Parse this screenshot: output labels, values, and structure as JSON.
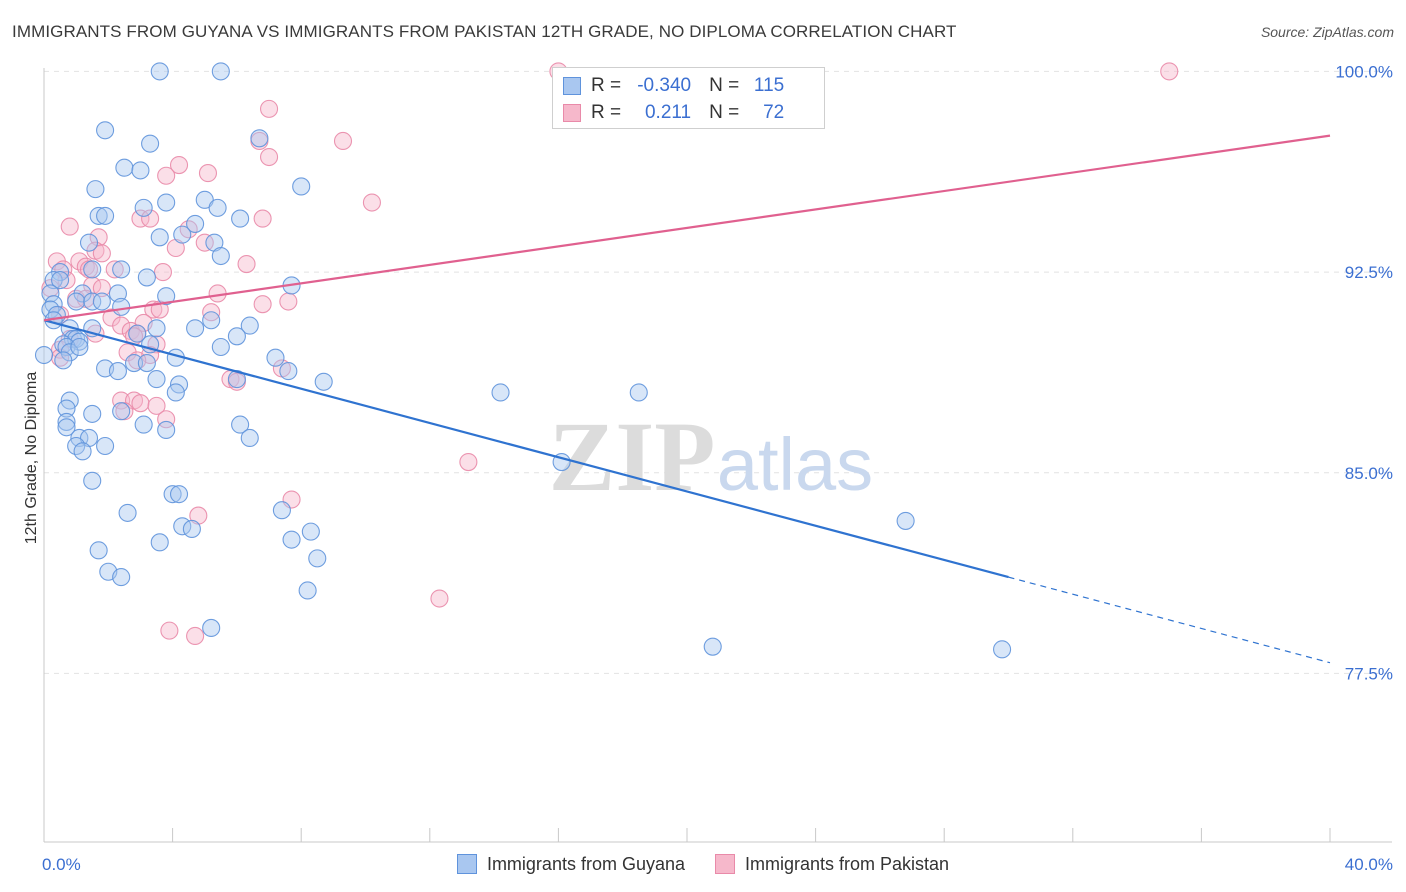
{
  "title": "IMMIGRANTS FROM GUYANA VS IMMIGRANTS FROM PAKISTAN 12TH GRADE, NO DIPLOMA CORRELATION CHART",
  "source": "Source: ZipAtlas.com",
  "watermark": {
    "zip": "ZIP",
    "atlas": "atlas"
  },
  "colors": {
    "guyana_fill": "#a9c7f0",
    "guyana_stroke": "#5f93dc",
    "guyana_line": "#2f73d0",
    "pakistan_fill": "#f6b8cb",
    "pakistan_stroke": "#e98aa9",
    "pakistan_line": "#e0608f",
    "tick_text": "#3b6fd1",
    "grid": "#e2e2e2"
  },
  "legend_top": {
    "rows": [
      {
        "r_key": "R =",
        "r_val": "-0.340",
        "n_key": "N =",
        "n_val": "115",
        "series": "guyana"
      },
      {
        "r_key": "R =",
        "r_val": "0.211",
        "n_key": "N =",
        "n_val": "72",
        "series": "pakistan"
      }
    ]
  },
  "bottom_legend": {
    "guyana": "Immigrants from Guyana",
    "pakistan": "Immigrants from Pakistan"
  },
  "chart_data": {
    "type": "scatter",
    "title": "IMMIGRANTS FROM GUYANA VS IMMIGRANTS FROM PAKISTAN 12TH GRADE, NO DIPLOMA CORRELATION CHART",
    "xlabel": "",
    "ylabel": "12th Grade, No Diploma",
    "xlim": [
      0,
      40
    ],
    "ylim": [
      71.2,
      100.8
    ],
    "x_tick_labels": [
      "0.0%",
      "40.0%"
    ],
    "y_ticks": [
      77.5,
      85.0,
      92.5,
      100.0
    ],
    "y_tick_labels": [
      "77.5%",
      "85.0%",
      "92.5%",
      "100.0%"
    ],
    "grid": true,
    "legend_position": "top-center",
    "series": [
      {
        "name": "Immigrants from Guyana",
        "color": "#5f93dc",
        "trend": {
          "x": [
            0.0,
            30.0
          ],
          "y": [
            90.7,
            81.1
          ],
          "dashed_extension": {
            "x": [
              30.0,
              40.0
            ],
            "y": [
              81.1,
              77.9
            ]
          }
        },
        "points": [
          [
            3.6,
            100.0
          ],
          [
            5.5,
            100.0
          ],
          [
            1.9,
            97.8
          ],
          [
            3.3,
            97.3
          ],
          [
            6.7,
            97.5
          ],
          [
            2.5,
            96.4
          ],
          [
            3.0,
            96.3
          ],
          [
            1.6,
            95.6
          ],
          [
            8.0,
            95.7
          ],
          [
            5.0,
            95.2
          ],
          [
            3.8,
            95.1
          ],
          [
            3.1,
            94.9
          ],
          [
            5.4,
            94.9
          ],
          [
            1.7,
            94.6
          ],
          [
            1.9,
            94.6
          ],
          [
            6.1,
            94.5
          ],
          [
            4.7,
            94.3
          ],
          [
            3.6,
            93.8
          ],
          [
            4.3,
            93.9
          ],
          [
            1.4,
            93.6
          ],
          [
            5.3,
            93.6
          ],
          [
            5.5,
            93.1
          ],
          [
            0.5,
            92.5
          ],
          [
            0.3,
            92.2
          ],
          [
            0.5,
            92.2
          ],
          [
            1.5,
            92.6
          ],
          [
            2.4,
            92.6
          ],
          [
            3.2,
            92.3
          ],
          [
            7.7,
            92.0
          ],
          [
            0.2,
            91.7
          ],
          [
            1.2,
            91.7
          ],
          [
            2.3,
            91.7
          ],
          [
            3.8,
            91.6
          ],
          [
            1.0,
            91.4
          ],
          [
            1.5,
            91.4
          ],
          [
            1.8,
            91.4
          ],
          [
            0.3,
            91.3
          ],
          [
            2.4,
            91.2
          ],
          [
            0.2,
            91.1
          ],
          [
            0.4,
            90.9
          ],
          [
            0.3,
            90.7
          ],
          [
            0.8,
            90.4
          ],
          [
            1.5,
            90.4
          ],
          [
            4.7,
            90.4
          ],
          [
            5.2,
            90.7
          ],
          [
            3.5,
            90.4
          ],
          [
            6.4,
            90.5
          ],
          [
            2.9,
            90.2
          ],
          [
            0.9,
            90.0
          ],
          [
            1.0,
            90.0
          ],
          [
            0.6,
            89.8
          ],
          [
            1.1,
            89.9
          ],
          [
            6.0,
            90.1
          ],
          [
            0.7,
            89.7
          ],
          [
            0.8,
            89.5
          ],
          [
            1.1,
            89.7
          ],
          [
            3.3,
            89.8
          ],
          [
            5.5,
            89.7
          ],
          [
            4.1,
            89.3
          ],
          [
            7.2,
            89.3
          ],
          [
            0.0,
            89.4
          ],
          [
            0.6,
            89.2
          ],
          [
            2.8,
            89.1
          ],
          [
            3.2,
            89.1
          ],
          [
            1.9,
            88.9
          ],
          [
            2.3,
            88.8
          ],
          [
            3.5,
            88.5
          ],
          [
            7.6,
            88.8
          ],
          [
            6.0,
            88.5
          ],
          [
            8.7,
            88.4
          ],
          [
            4.2,
            88.3
          ],
          [
            4.1,
            88.0
          ],
          [
            14.2,
            88.0
          ],
          [
            18.5,
            88.0
          ],
          [
            0.8,
            87.7
          ],
          [
            0.7,
            87.4
          ],
          [
            2.4,
            87.3
          ],
          [
            1.5,
            87.2
          ],
          [
            0.7,
            86.9
          ],
          [
            3.1,
            86.8
          ],
          [
            6.1,
            86.8
          ],
          [
            0.7,
            86.7
          ],
          [
            3.8,
            86.6
          ],
          [
            1.1,
            86.3
          ],
          [
            1.4,
            86.3
          ],
          [
            6.4,
            86.3
          ],
          [
            1.9,
            86.0
          ],
          [
            1.0,
            86.0
          ],
          [
            1.2,
            85.8
          ],
          [
            16.1,
            85.4
          ],
          [
            1.5,
            84.7
          ],
          [
            4.0,
            84.2
          ],
          [
            4.2,
            84.2
          ],
          [
            2.6,
            83.5
          ],
          [
            7.4,
            83.6
          ],
          [
            4.3,
            83.0
          ],
          [
            4.6,
            82.9
          ],
          [
            8.3,
            82.8
          ],
          [
            7.7,
            82.5
          ],
          [
            3.6,
            82.4
          ],
          [
            1.7,
            82.1
          ],
          [
            26.8,
            83.2
          ],
          [
            8.5,
            81.8
          ],
          [
            2.0,
            81.3
          ],
          [
            2.4,
            81.1
          ],
          [
            8.2,
            80.6
          ],
          [
            5.2,
            79.2
          ],
          [
            20.8,
            78.5
          ],
          [
            29.8,
            78.4
          ]
        ]
      },
      {
        "name": "Immigrants from Pakistan",
        "color": "#e98aa9",
        "trend": {
          "x": [
            0.0,
            40.0
          ],
          "y": [
            90.7,
            97.6
          ]
        },
        "points": [
          [
            16.0,
            100.0
          ],
          [
            35.0,
            100.0
          ],
          [
            7.0,
            98.6
          ],
          [
            9.3,
            97.4
          ],
          [
            6.7,
            97.4
          ],
          [
            7.0,
            96.8
          ],
          [
            4.2,
            96.5
          ],
          [
            3.8,
            96.1
          ],
          [
            5.1,
            96.2
          ],
          [
            10.2,
            95.1
          ],
          [
            3.0,
            94.5
          ],
          [
            3.3,
            94.5
          ],
          [
            6.8,
            94.5
          ],
          [
            0.8,
            94.2
          ],
          [
            4.5,
            94.1
          ],
          [
            1.7,
            93.8
          ],
          [
            5.0,
            93.6
          ],
          [
            4.1,
            93.4
          ],
          [
            1.6,
            93.3
          ],
          [
            1.8,
            93.2
          ],
          [
            0.4,
            92.9
          ],
          [
            1.1,
            92.9
          ],
          [
            1.3,
            92.7
          ],
          [
            6.3,
            92.8
          ],
          [
            0.6,
            92.6
          ],
          [
            1.4,
            92.6
          ],
          [
            2.2,
            92.6
          ],
          [
            3.7,
            92.5
          ],
          [
            0.7,
            92.2
          ],
          [
            1.5,
            92.0
          ],
          [
            0.2,
            91.9
          ],
          [
            1.8,
            91.9
          ],
          [
            5.4,
            91.7
          ],
          [
            1.0,
            91.5
          ],
          [
            1.3,
            91.5
          ],
          [
            7.6,
            91.4
          ],
          [
            6.8,
            91.3
          ],
          [
            3.4,
            91.1
          ],
          [
            3.6,
            91.1
          ],
          [
            5.2,
            91.0
          ],
          [
            0.5,
            90.9
          ],
          [
            2.1,
            90.8
          ],
          [
            2.4,
            90.5
          ],
          [
            3.1,
            90.6
          ],
          [
            2.7,
            90.3
          ],
          [
            2.9,
            90.2
          ],
          [
            1.6,
            90.2
          ],
          [
            2.8,
            90.1
          ],
          [
            0.8,
            90.0
          ],
          [
            3.5,
            89.8
          ],
          [
            0.5,
            89.6
          ],
          [
            2.6,
            89.5
          ],
          [
            3.3,
            89.4
          ],
          [
            0.5,
            89.3
          ],
          [
            2.9,
            89.2
          ],
          [
            7.4,
            88.9
          ],
          [
            5.8,
            88.5
          ],
          [
            6.0,
            88.4
          ],
          [
            2.4,
            87.7
          ],
          [
            2.8,
            87.7
          ],
          [
            3.0,
            87.6
          ],
          [
            2.5,
            87.3
          ],
          [
            3.5,
            87.5
          ],
          [
            3.8,
            87.0
          ],
          [
            13.2,
            85.4
          ],
          [
            7.7,
            84.0
          ],
          [
            4.8,
            83.4
          ],
          [
            12.3,
            80.3
          ],
          [
            3.9,
            79.1
          ],
          [
            4.7,
            78.9
          ]
        ]
      }
    ]
  }
}
